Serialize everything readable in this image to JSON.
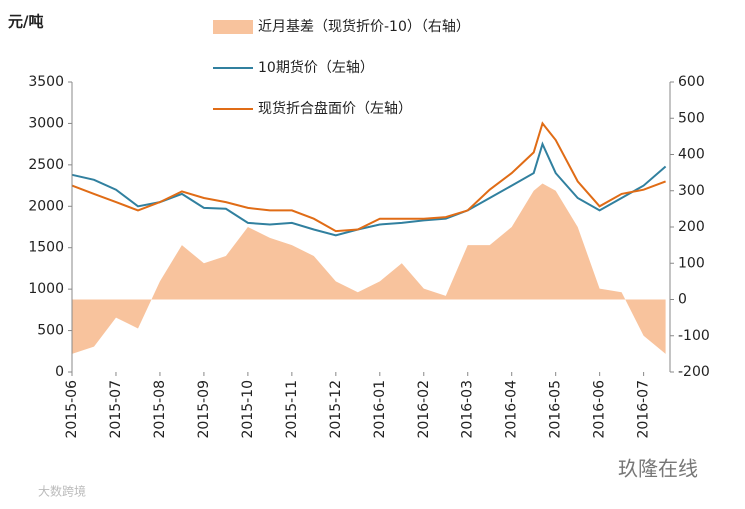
{
  "chart_data": {
    "type": "line",
    "y_label": "元/吨",
    "x": [
      0,
      0.5,
      1,
      1.5,
      2,
      2.5,
      3,
      3.5,
      4,
      4.5,
      5,
      5.5,
      6,
      6.5,
      7,
      7.5,
      8,
      8.5,
      9,
      9.5,
      10,
      10.5,
      10.7,
      11,
      11.5,
      12,
      12.5,
      13,
      13.5
    ],
    "xlim": [
      0,
      13.6
    ],
    "xticks": [
      {
        "value": 0,
        "label": "2015-06"
      },
      {
        "value": 1,
        "label": "2015-07"
      },
      {
        "value": 2,
        "label": "2015-08"
      },
      {
        "value": 3,
        "label": "2015-09"
      },
      {
        "value": 4,
        "label": "2015-10"
      },
      {
        "value": 5,
        "label": "2015-11"
      },
      {
        "value": 6,
        "label": "2015-12"
      },
      {
        "value": 7,
        "label": "2016-01"
      },
      {
        "value": 8,
        "label": "2016-02"
      },
      {
        "value": 9,
        "label": "2016-03"
      },
      {
        "value": 10,
        "label": "2016-04"
      },
      {
        "value": 11,
        "label": "2016-05"
      },
      {
        "value": 12,
        "label": "2016-06"
      },
      {
        "value": 13,
        "label": "2016-07"
      }
    ],
    "ylim": [
      0,
      3500
    ],
    "yticks": [
      0,
      500,
      1000,
      1500,
      2000,
      2500,
      3000,
      3500
    ],
    "y2lim": [
      -200,
      600
    ],
    "y2ticks": [
      -200,
      -100,
      0,
      100,
      200,
      300,
      400,
      500,
      600
    ],
    "series": [
      {
        "name": "近月基差（现货折价-10）（右轴）",
        "color": "#f8c39d",
        "type": "area",
        "axis": "y2",
        "values": [
          -150,
          -130,
          -50,
          -80,
          50,
          150,
          100,
          120,
          200,
          170,
          150,
          120,
          50,
          20,
          50,
          100,
          30,
          10,
          150,
          150,
          200,
          300,
          320,
          300,
          200,
          30,
          20,
          -100,
          -150
        ]
      },
      {
        "name": "10期货价（左轴）",
        "color": "#31809f",
        "type": "line",
        "values": [
          2380,
          2320,
          2200,
          2000,
          2050,
          2150,
          1980,
          1970,
          1800,
          1780,
          1800,
          1720,
          1650,
          1720,
          1780,
          1800,
          1830,
          1850,
          1950,
          2100,
          2250,
          2400,
          2750,
          2400,
          2100,
          1950,
          2100,
          2250,
          2480
        ]
      },
      {
        "name": "现货折合盘面价（左轴）",
        "color": "#e06c16",
        "type": "line",
        "values": [
          2250,
          2150,
          2050,
          1950,
          2050,
          2180,
          2100,
          2050,
          1980,
          1950,
          1950,
          1850,
          1700,
          1720,
          1850,
          1850,
          1850,
          1870,
          1950,
          2200,
          2400,
          2650,
          3000,
          2800,
          2300,
          2000,
          2150,
          2200,
          2300
        ]
      }
    ],
    "annotations": [
      "玖隆在线",
      "大数跨境"
    ]
  }
}
